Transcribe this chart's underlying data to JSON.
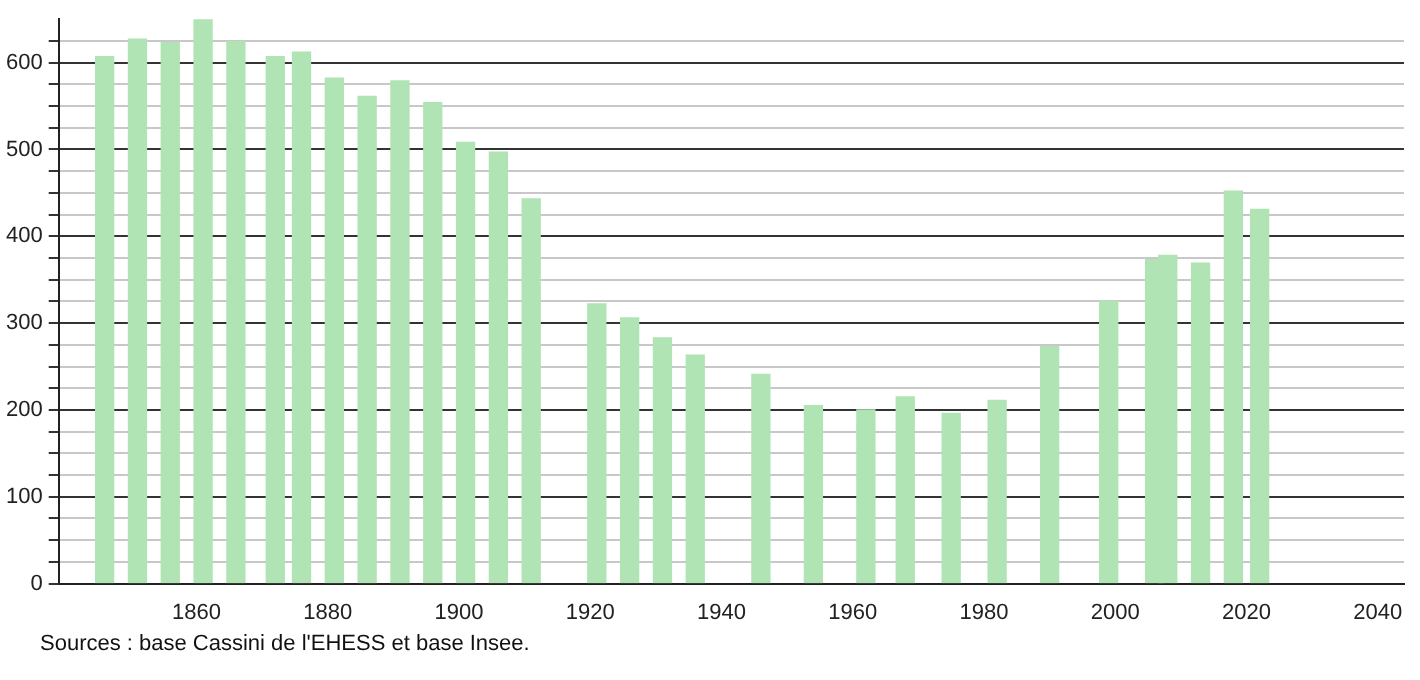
{
  "chart_data": {
    "type": "bar",
    "x": [
      1846,
      1851,
      1856,
      1861,
      1866,
      1872,
      1876,
      1881,
      1886,
      1891,
      1896,
      1901,
      1906,
      1911,
      1921,
      1926,
      1931,
      1936,
      1946,
      1954,
      1962,
      1968,
      1975,
      1982,
      1990,
      1999,
      2006,
      2008,
      2013,
      2018,
      2022
    ],
    "values": [
      607,
      627,
      623,
      650,
      624,
      607,
      612,
      582,
      561,
      579,
      554,
      508,
      497,
      443,
      322,
      306,
      283,
      263,
      241,
      205,
      200,
      215,
      196,
      211,
      273,
      325,
      373,
      378,
      369,
      452,
      431
    ],
    "color": "#b0e4b4",
    "xlim": [
      1839,
      2044
    ],
    "xticks": [
      1860,
      1880,
      1900,
      1920,
      1940,
      1960,
      1980,
      2000,
      2020,
      2040
    ],
    "ylim": [
      0,
      650
    ],
    "yticks": [
      0,
      {
        "value": 25,
        "label": null
      },
      {
        "value": 50,
        "label": null
      },
      {
        "value": 75,
        "label": null
      },
      100,
      {
        "value": 125,
        "label": null
      },
      {
        "value": 150,
        "label": null
      },
      {
        "value": 175,
        "label": null
      },
      200,
      {
        "value": 225,
        "label": null
      },
      {
        "value": 250,
        "label": null
      },
      {
        "value": 275,
        "label": null
      },
      300,
      {
        "value": 325,
        "label": null
      },
      {
        "value": 350,
        "label": null
      },
      {
        "value": 375,
        "label": null
      },
      400,
      {
        "value": 425,
        "label": null
      },
      {
        "value": 450,
        "label": null
      },
      {
        "value": 475,
        "label": null
      },
      500,
      {
        "value": 525,
        "label": null
      },
      {
        "value": 550,
        "label": null
      },
      {
        "value": 575,
        "label": null
      },
      600,
      {
        "value": 625,
        "label": null
      }
    ],
    "grid": "y",
    "legend": false,
    "annotations": [
      "Sources : base Cassini de l'EHESS et base Insee."
    ]
  }
}
